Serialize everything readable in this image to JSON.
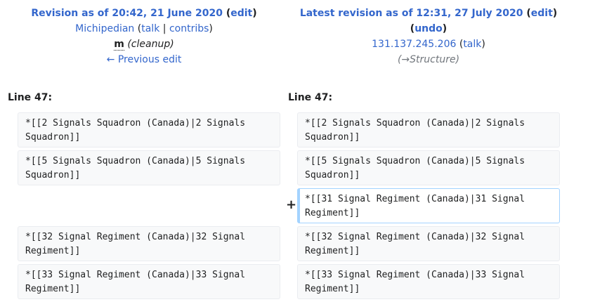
{
  "left": {
    "title_prefix": "Revision as of 20:42, 21 June 2020",
    "edit_label": "edit",
    "user": "Michipedian",
    "talk_label": "talk",
    "separator": "|",
    "contribs_label": "contribs",
    "minor_mark": "m",
    "comment": "(cleanup)",
    "prev_edit_label": "← Previous edit",
    "line_label": "Line 47:"
  },
  "right": {
    "title_prefix": "Latest revision as of 12:31, 27 July 2020",
    "edit_label": "edit",
    "undo_label": "undo",
    "user": "131.137.245.206",
    "talk_label": "talk",
    "comment_arrow": "→Structure",
    "line_label": "Line 47:"
  },
  "marker": "+",
  "diff": {
    "left_rows": [
      "*[[2 Signals Squadron (Canada)|2 Signals Squadron]]",
      "*[[5 Signals Squadron (Canada)|5 Signals Squadron]]",
      "*[[32 Signal Regiment (Canada)|32 Signal Regiment]]",
      "*[[33 Signal Regiment (Canada)|33 Signal Regiment]]"
    ],
    "right_rows": [
      "*[[2 Signals Squadron (Canada)|2 Signals Squadron]]",
      "*[[5 Signals Squadron (Canada)|5 Signals Squadron]]",
      "*[[31 Signal Regiment (Canada)|31 Signal Regiment]]",
      "*[[32 Signal Regiment (Canada)|32 Signal Regiment]]",
      "*[[33 Signal Regiment (Canada)|33 Signal Regiment]]"
    ]
  }
}
